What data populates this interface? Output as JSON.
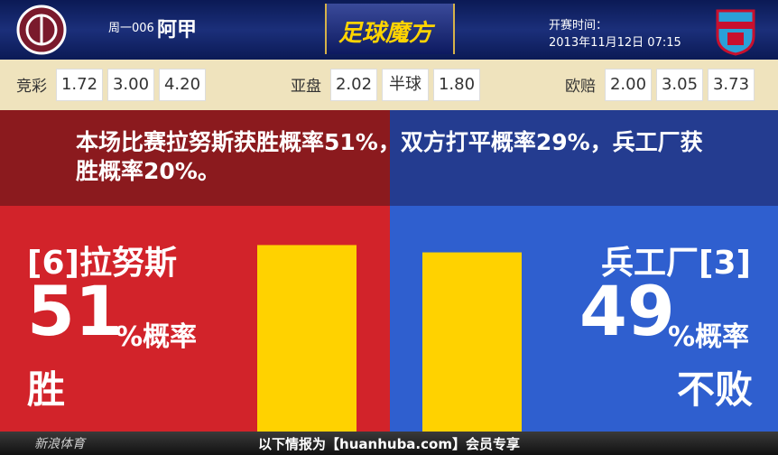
{
  "header": {
    "match_no": "周一006",
    "league": "阿甲",
    "brand": "足球魔方",
    "kickoff_label": "开赛时间：",
    "kickoff_time": "2013年11月12日 07:15"
  },
  "odds": [
    {
      "label": "竞彩",
      "values": [
        "1.72",
        "3.00",
        "4.20"
      ]
    },
    {
      "label": "亚盘",
      "values": [
        "2.02",
        "半球",
        "1.80"
      ]
    },
    {
      "label": "欧赔",
      "values": [
        "2.00",
        "3.05",
        "3.73"
      ]
    }
  ],
  "summary": "本场比赛拉努斯获胜概率51%，双方打平概率29%，兵工厂获胜概率20%。",
  "home": {
    "name": "[6]拉努斯",
    "percent": 51,
    "unit": "%概率",
    "outcome": "胜"
  },
  "away": {
    "name": "兵工厂[3]",
    "percent": 49,
    "unit": "%概率",
    "outcome": "不败"
  },
  "footer": {
    "source": "新浪体育",
    "note": "以下情报为【huanhuba.com】会员专享"
  }
}
